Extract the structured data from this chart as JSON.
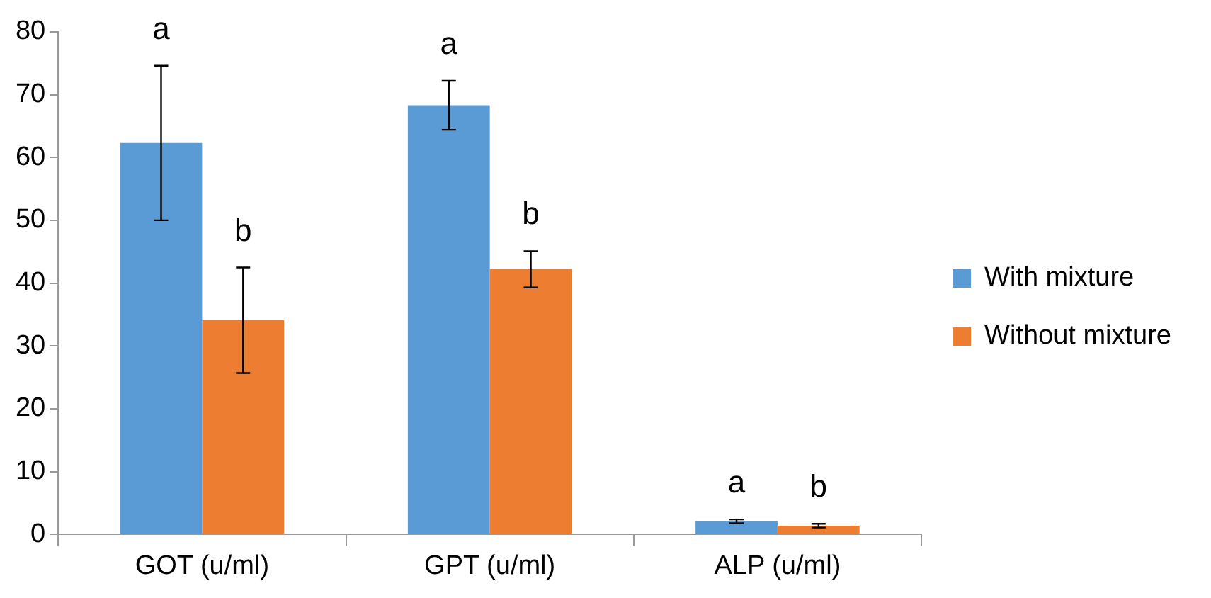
{
  "chart_data": {
    "type": "bar",
    "categories": [
      "GOT (u/ml)",
      "GPT (u/ml)",
      "ALP (u/ml)"
    ],
    "series": [
      {
        "name": "With mixture",
        "color": "#5b9bd5",
        "values": [
          62.3,
          68.3,
          2.1
        ],
        "errors": [
          12.3,
          3.9,
          0.3
        ]
      },
      {
        "name": "Without mixture",
        "color": "#ed7d31",
        "values": [
          34.1,
          42.2,
          1.4
        ],
        "errors": [
          8.4,
          2.9,
          0.3
        ]
      }
    ],
    "ylim": [
      0,
      80
    ],
    "yticks": [
      0,
      10,
      20,
      30,
      40,
      50,
      60,
      70,
      80
    ],
    "legend": "right",
    "annotations": [
      "a",
      "b",
      "a",
      "b",
      "a",
      "b"
    ]
  }
}
